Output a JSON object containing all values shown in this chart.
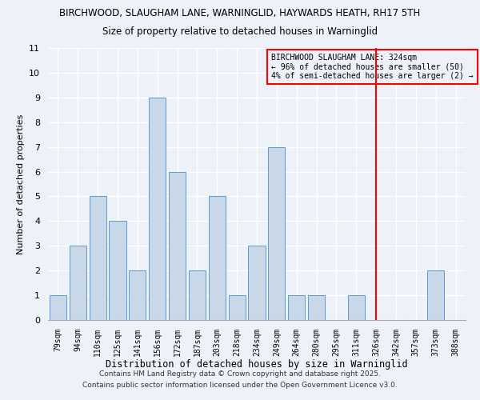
{
  "title1": "BIRCHWOOD, SLAUGHAM LANE, WARNINGLID, HAYWARDS HEATH, RH17 5TH",
  "title2": "Size of property relative to detached houses in Warninglid",
  "xlabel": "Distribution of detached houses by size in Warninglid",
  "ylabel": "Number of detached properties",
  "categories": [
    "79sqm",
    "94sqm",
    "110sqm",
    "125sqm",
    "141sqm",
    "156sqm",
    "172sqm",
    "187sqm",
    "203sqm",
    "218sqm",
    "234sqm",
    "249sqm",
    "264sqm",
    "280sqm",
    "295sqm",
    "311sqm",
    "326sqm",
    "342sqm",
    "357sqm",
    "373sqm",
    "388sqm"
  ],
  "values": [
    1,
    3,
    5,
    4,
    2,
    9,
    6,
    2,
    5,
    1,
    3,
    7,
    1,
    1,
    0,
    1,
    0,
    0,
    0,
    2,
    0
  ],
  "bar_color": "#c8d8e8",
  "bar_edge_color": "#5b9bd5",
  "red_line_index": 16,
  "red_line_label": "BIRCHWOOD SLAUGHAM LANE: 324sqm",
  "red_line_sublabel1": "← 96% of detached houses are smaller (50)",
  "red_line_sublabel2": "4% of semi-detached houses are larger (2) →",
  "ylim": [
    0,
    11
  ],
  "yticks": [
    0,
    1,
    2,
    3,
    4,
    5,
    6,
    7,
    8,
    9,
    10,
    11
  ],
  "background_color": "#edf2f9",
  "grid_color": "#ffffff",
  "footer1": "Contains HM Land Registry data © Crown copyright and database right 2025.",
  "footer2": "Contains public sector information licensed under the Open Government Licence v3.0."
}
